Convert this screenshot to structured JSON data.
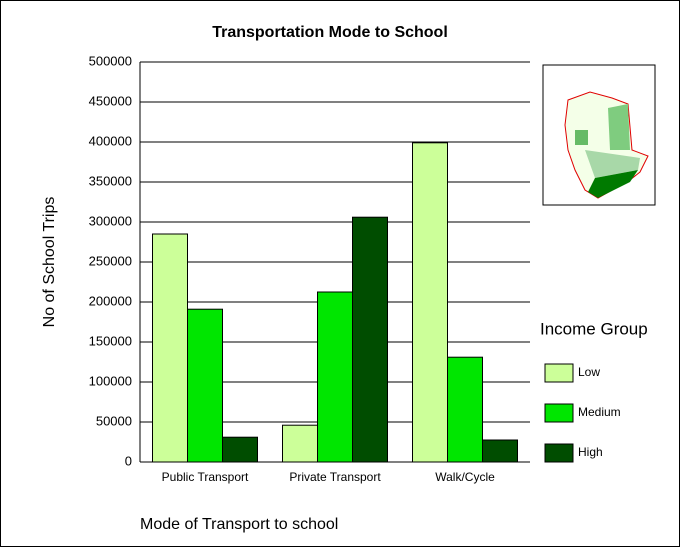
{
  "chart_data": {
    "type": "bar",
    "title": "Transportation Mode to School",
    "x_label": "Mode of Transport to school",
    "y_label": "No of School Trips",
    "categories": [
      "Public Transport",
      "Private Transport",
      "Walk/Cycle"
    ],
    "legend_title": "Income Group",
    "series": [
      {
        "name": "Low",
        "color": "#ccff99",
        "values": [
          285000,
          46000,
          399000
        ]
      },
      {
        "name": "Medium",
        "color": "#00e600",
        "values": [
          191000,
          212500,
          131000
        ]
      },
      {
        "name": "High",
        "color": "#004d00",
        "values": [
          31000,
          306000,
          27500
        ]
      }
    ],
    "ylim": [
      0,
      500000
    ],
    "yticks": [
      0,
      50000,
      100000,
      150000,
      200000,
      250000,
      300000,
      350000,
      400000,
      450000,
      500000
    ],
    "grid": true
  }
}
